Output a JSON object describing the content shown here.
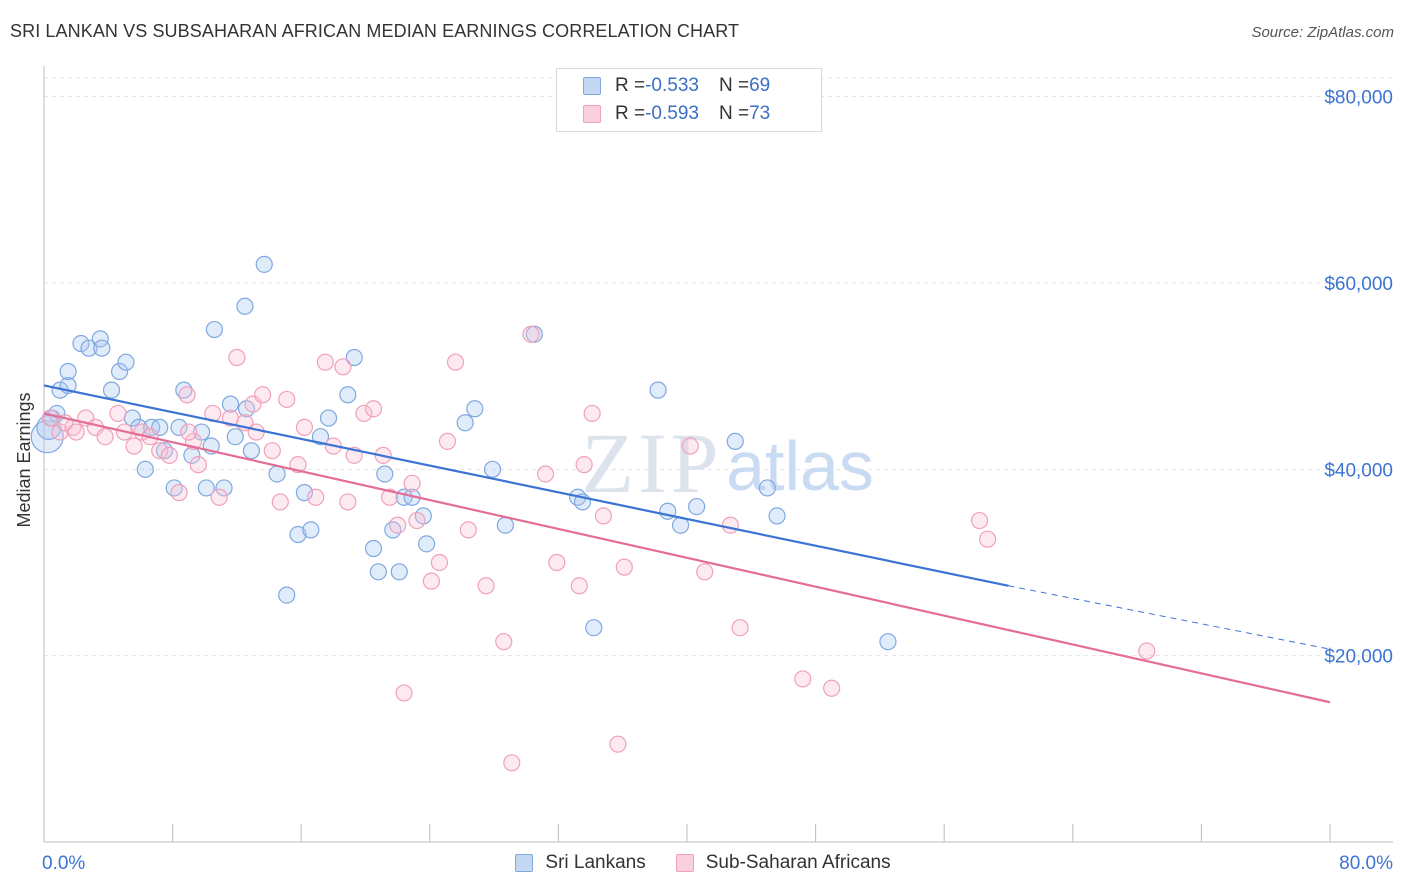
{
  "title": "SRI LANKAN VS SUBSAHARAN AFRICAN MEDIAN EARNINGS CORRELATION CHART",
  "source": "Source: ZipAtlas.com",
  "watermark": {
    "zip": "ZIP",
    "atlas": "atlas"
  },
  "legend": {
    "rows": [
      {
        "r_label": "R = ",
        "r_value": "-0.533",
        "n_label": "N = ",
        "n_value": "69",
        "color": "#7fa8e0",
        "fill": "#c5d8f3"
      },
      {
        "r_label": "R = ",
        "r_value": "-0.593",
        "n_label": "N = ",
        "n_value": "73",
        "color": "#f0a0ba",
        "fill": "#fbd0de"
      }
    ]
  },
  "bottom_legend": [
    {
      "label": "Sri Lankans",
      "color": "#7fa8e0",
      "fill": "#c5d8f3"
    },
    {
      "label": "Sub-Saharan Africans",
      "color": "#f0a0ba",
      "fill": "#fbd0de"
    }
  ],
  "chart_data": {
    "type": "scatter",
    "title": "SRI LANKAN VS SUBSAHARAN AFRICAN MEDIAN EARNINGS CORRELATION CHART",
    "xlabel": "",
    "ylabel": "Median Earnings",
    "xlim": [
      0,
      80
    ],
    "ylim": [
      0,
      82000
    ],
    "x_tick_labels": [
      "0.0%",
      "80.0%"
    ],
    "y_ticks": [
      20000,
      40000,
      60000,
      80000
    ],
    "y_tick_labels": [
      "$20,000",
      "$40,000",
      "$60,000",
      "$80,000"
    ],
    "grid": true,
    "series": [
      {
        "name": "Sri Lankans",
        "color": "#3b74d3",
        "point_stroke": "#7fa8e0",
        "point_fill": "rgba(170,200,240,0.35)",
        "trend": {
          "x0": 0,
          "y0": 49000,
          "x1": 60,
          "y1": 27500,
          "dash_to_x": 80,
          "dash_to_y": 20700
        },
        "points": [
          [
            0.2,
            43500
          ],
          [
            0.5,
            45500
          ],
          [
            1.0,
            48500
          ],
          [
            1.5,
            49000
          ],
          [
            1.5,
            50500
          ],
          [
            2.3,
            53500
          ],
          [
            2.8,
            53000
          ],
          [
            3.5,
            54000
          ],
          [
            3.6,
            53000
          ],
          [
            4.2,
            48500
          ],
          [
            4.7,
            50500
          ],
          [
            5.1,
            51500
          ],
          [
            5.5,
            45500
          ],
          [
            5.9,
            44500
          ],
          [
            6.3,
            40000
          ],
          [
            6.7,
            44500
          ],
          [
            7.2,
            44500
          ],
          [
            7.5,
            42000
          ],
          [
            8.1,
            38000
          ],
          [
            8.4,
            44500
          ],
          [
            8.7,
            48500
          ],
          [
            9.2,
            41500
          ],
          [
            9.8,
            44000
          ],
          [
            10.1,
            38000
          ],
          [
            10.4,
            42500
          ],
          [
            10.6,
            55000
          ],
          [
            11.2,
            38000
          ],
          [
            11.6,
            47000
          ],
          [
            11.9,
            43500
          ],
          [
            12.5,
            57500
          ],
          [
            12.6,
            46500
          ],
          [
            12.9,
            42000
          ],
          [
            13.7,
            62000
          ],
          [
            14.5,
            39500
          ],
          [
            15.1,
            26500
          ],
          [
            15.8,
            33000
          ],
          [
            16.2,
            37500
          ],
          [
            16.6,
            33500
          ],
          [
            17.2,
            43500
          ],
          [
            17.7,
            45500
          ],
          [
            18.9,
            48000
          ],
          [
            19.3,
            52000
          ],
          [
            20.5,
            31500
          ],
          [
            20.8,
            29000
          ],
          [
            21.2,
            39500
          ],
          [
            21.7,
            33500
          ],
          [
            22.1,
            29000
          ],
          [
            22.4,
            37000
          ],
          [
            22.9,
            37000
          ],
          [
            23.6,
            35000
          ],
          [
            23.8,
            32000
          ],
          [
            26.2,
            45000
          ],
          [
            26.8,
            46500
          ],
          [
            27.9,
            40000
          ],
          [
            28.7,
            34000
          ],
          [
            30.5,
            54500
          ],
          [
            33.2,
            37000
          ],
          [
            33.5,
            36500
          ],
          [
            34.2,
            23000
          ],
          [
            38.2,
            48500
          ],
          [
            38.8,
            35500
          ],
          [
            39.6,
            34000
          ],
          [
            40.6,
            36000
          ],
          [
            43.0,
            43000
          ],
          [
            45.0,
            38000
          ],
          [
            45.6,
            35000
          ],
          [
            52.5,
            21500
          ],
          [
            0.8,
            46000
          ],
          [
            0.3,
            44500
          ]
        ]
      },
      {
        "name": "Sub-Saharan Africans",
        "color": "#e46d96",
        "point_stroke": "#f0a0ba",
        "point_fill": "rgba(250,195,213,0.35)",
        "trend": {
          "x0": 0,
          "y0": 46000,
          "x1": 80,
          "y1": 15000
        },
        "points": [
          [
            0.4,
            45500
          ],
          [
            1.0,
            44000
          ],
          [
            1.8,
            44500
          ],
          [
            2.6,
            45500
          ],
          [
            3.2,
            44500
          ],
          [
            3.8,
            43500
          ],
          [
            4.6,
            46000
          ],
          [
            5.0,
            44000
          ],
          [
            5.6,
            42500
          ],
          [
            6.1,
            44000
          ],
          [
            6.6,
            43500
          ],
          [
            7.2,
            42000
          ],
          [
            7.8,
            41500
          ],
          [
            8.4,
            37500
          ],
          [
            8.9,
            48000
          ],
          [
            9.3,
            43000
          ],
          [
            9.6,
            40500
          ],
          [
            10.5,
            46000
          ],
          [
            10.9,
            37000
          ],
          [
            11.6,
            45500
          ],
          [
            12.0,
            52000
          ],
          [
            12.5,
            45000
          ],
          [
            13.0,
            47000
          ],
          [
            13.6,
            48000
          ],
          [
            14.2,
            42000
          ],
          [
            14.7,
            36500
          ],
          [
            15.1,
            47500
          ],
          [
            15.8,
            40500
          ],
          [
            16.2,
            44500
          ],
          [
            16.9,
            37000
          ],
          [
            17.5,
            51500
          ],
          [
            18.0,
            42500
          ],
          [
            18.6,
            51000
          ],
          [
            18.9,
            36500
          ],
          [
            19.3,
            41500
          ],
          [
            19.9,
            46000
          ],
          [
            20.5,
            46500
          ],
          [
            21.1,
            41500
          ],
          [
            21.5,
            37000
          ],
          [
            22.0,
            34000
          ],
          [
            22.4,
            16000
          ],
          [
            22.9,
            38500
          ],
          [
            23.2,
            34500
          ],
          [
            24.1,
            28000
          ],
          [
            24.6,
            30000
          ],
          [
            25.1,
            43000
          ],
          [
            25.6,
            51500
          ],
          [
            26.4,
            33500
          ],
          [
            27.5,
            27500
          ],
          [
            28.6,
            21500
          ],
          [
            29.1,
            8500
          ],
          [
            30.3,
            54500
          ],
          [
            31.2,
            39500
          ],
          [
            31.9,
            30000
          ],
          [
            33.3,
            27500
          ],
          [
            33.6,
            40500
          ],
          [
            34.1,
            46000
          ],
          [
            34.8,
            35000
          ],
          [
            35.7,
            10500
          ],
          [
            36.1,
            29500
          ],
          [
            40.2,
            42500
          ],
          [
            41.1,
            29000
          ],
          [
            42.7,
            34000
          ],
          [
            43.3,
            23000
          ],
          [
            47.2,
            17500
          ],
          [
            49.0,
            16500
          ],
          [
            58.2,
            34500
          ],
          [
            58.7,
            32500
          ],
          [
            68.6,
            20500
          ],
          [
            1.3,
            45000
          ],
          [
            2.0,
            44000
          ],
          [
            9.0,
            44000
          ],
          [
            13.2,
            44000
          ]
        ]
      }
    ]
  }
}
